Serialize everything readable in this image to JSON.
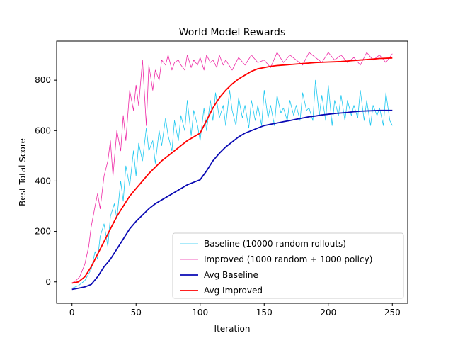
{
  "chart_data": {
    "type": "line",
    "title": "World Model Rewards",
    "xlabel": "Iteration",
    "ylabel": "Best Total Score",
    "xlim": [
      -12,
      262
    ],
    "ylim": [
      -85,
      955
    ],
    "xticks": [
      0,
      50,
      100,
      150,
      200,
      250
    ],
    "yticks": [
      0,
      200,
      400,
      600,
      800
    ],
    "grid": false,
    "legend_position": "lower-right",
    "series": [
      {
        "name": "Baseline (10000 random rollouts)",
        "color": "#1ec8f0",
        "style": "thin",
        "x": [
          0,
          5,
          10,
          15,
          18,
          20,
          22,
          25,
          28,
          30,
          33,
          35,
          38,
          40,
          42,
          45,
          48,
          50,
          52,
          55,
          58,
          60,
          63,
          65,
          68,
          70,
          73,
          75,
          78,
          80,
          83,
          85,
          88,
          90,
          93,
          95,
          98,
          100,
          103,
          105,
          108,
          110,
          112,
          115,
          118,
          120,
          123,
          125,
          128,
          130,
          133,
          135,
          138,
          140,
          143,
          145,
          148,
          150,
          153,
          155,
          158,
          160,
          163,
          165,
          168,
          170,
          173,
          175,
          178,
          180,
          183,
          185,
          188,
          190,
          193,
          195,
          198,
          200,
          203,
          205,
          208,
          210,
          213,
          215,
          218,
          220,
          223,
          225,
          228,
          230,
          233,
          235,
          238,
          240,
          243,
          245,
          248,
          250
        ],
        "y": [
          -25,
          -15,
          5,
          50,
          120,
          90,
          180,
          230,
          140,
          260,
          310,
          250,
          400,
          320,
          460,
          380,
          520,
          420,
          550,
          480,
          610,
          520,
          560,
          470,
          600,
          540,
          650,
          580,
          520,
          640,
          560,
          660,
          600,
          720,
          580,
          680,
          620,
          560,
          690,
          600,
          720,
          640,
          750,
          650,
          700,
          620,
          760,
          680,
          620,
          730,
          650,
          700,
          610,
          720,
          640,
          700,
          620,
          760,
          650,
          700,
          620,
          740,
          670,
          690,
          640,
          720,
          660,
          700,
          640,
          750,
          680,
          690,
          640,
          800,
          660,
          740,
          640,
          780,
          620,
          720,
          660,
          740,
          640,
          720,
          660,
          700,
          650,
          760,
          640,
          720,
          620,
          700,
          660,
          690,
          620,
          750,
          640,
          620
        ]
      },
      {
        "name": "Improved (1000 random + 1000 policy)",
        "color": "#ee2aa6",
        "style": "thin",
        "x": [
          0,
          3,
          6,
          10,
          13,
          15,
          18,
          20,
          22,
          25,
          28,
          30,
          32,
          35,
          38,
          40,
          42,
          45,
          48,
          50,
          52,
          55,
          58,
          60,
          63,
          65,
          68,
          70,
          73,
          75,
          78,
          80,
          83,
          85,
          88,
          90,
          93,
          95,
          98,
          100,
          103,
          105,
          108,
          110,
          113,
          115,
          118,
          120,
          125,
          130,
          135,
          140,
          145,
          150,
          155,
          160,
          165,
          170,
          175,
          180,
          185,
          190,
          195,
          200,
          205,
          210,
          215,
          220,
          225,
          230,
          235,
          240,
          245,
          250
        ],
        "y": [
          -5,
          5,
          20,
          70,
          140,
          220,
          300,
          350,
          290,
          420,
          480,
          560,
          420,
          600,
          520,
          660,
          560,
          760,
          680,
          780,
          700,
          880,
          620,
          860,
          760,
          840,
          800,
          880,
          860,
          900,
          840,
          870,
          880,
          860,
          840,
          900,
          850,
          880,
          860,
          890,
          840,
          900,
          870,
          880,
          850,
          900,
          860,
          880,
          840,
          890,
          860,
          900,
          870,
          880,
          850,
          910,
          870,
          900,
          880,
          860,
          910,
          890,
          870,
          910,
          880,
          900,
          870,
          890,
          860,
          910,
          880,
          900,
          870,
          905
        ]
      },
      {
        "name": "Avg Baseline",
        "color": "#0a0ab4",
        "style": "thick",
        "x": [
          0,
          5,
          10,
          15,
          20,
          25,
          30,
          35,
          40,
          45,
          50,
          55,
          60,
          65,
          70,
          75,
          80,
          85,
          90,
          95,
          100,
          105,
          110,
          115,
          120,
          125,
          130,
          135,
          140,
          145,
          150,
          155,
          160,
          165,
          170,
          175,
          180,
          185,
          190,
          195,
          200,
          205,
          210,
          215,
          220,
          225,
          230,
          235,
          240,
          245,
          250
        ],
        "y": [
          -30,
          -25,
          -20,
          -10,
          20,
          60,
          90,
          130,
          170,
          210,
          240,
          265,
          290,
          310,
          325,
          340,
          355,
          370,
          385,
          395,
          405,
          440,
          480,
          510,
          535,
          555,
          575,
          590,
          600,
          610,
          620,
          625,
          630,
          635,
          640,
          645,
          650,
          655,
          658,
          662,
          665,
          668,
          670,
          672,
          675,
          677,
          678,
          679,
          680,
          680,
          680
        ]
      },
      {
        "name": "Avg Improved",
        "color": "#ff0000",
        "style": "thick",
        "x": [
          0,
          5,
          10,
          15,
          20,
          25,
          30,
          35,
          40,
          45,
          50,
          55,
          60,
          65,
          70,
          75,
          80,
          85,
          90,
          95,
          100,
          105,
          110,
          115,
          120,
          125,
          130,
          135,
          140,
          145,
          150,
          155,
          160,
          165,
          170,
          175,
          180,
          185,
          190,
          195,
          200,
          205,
          210,
          215,
          220,
          225,
          230,
          235,
          240,
          245,
          250
        ],
        "y": [
          -5,
          0,
          20,
          60,
          110,
          160,
          210,
          260,
          300,
          340,
          370,
          400,
          430,
          455,
          480,
          500,
          520,
          540,
          560,
          575,
          590,
          640,
          690,
          730,
          760,
          785,
          805,
          820,
          835,
          845,
          850,
          855,
          858,
          860,
          862,
          864,
          866,
          868,
          870,
          871,
          872,
          873,
          874,
          876,
          878,
          880,
          882,
          884,
          886,
          887,
          888
        ]
      }
    ]
  }
}
